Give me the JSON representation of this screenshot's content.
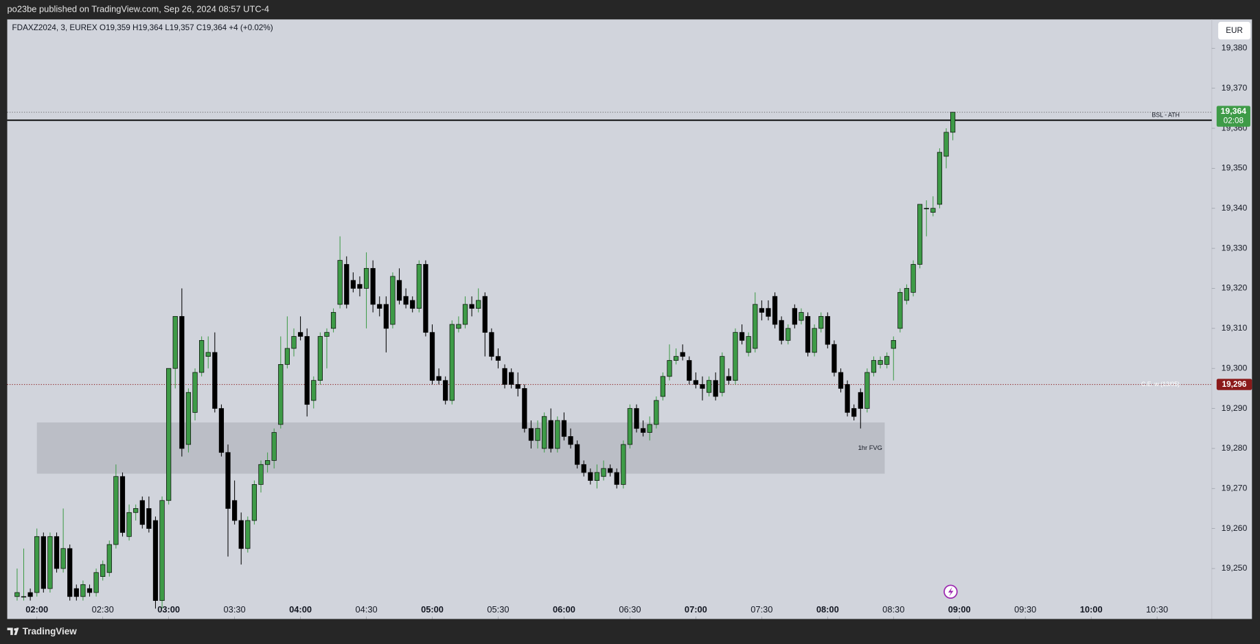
{
  "header": "po23be published on TradingView.com, Sep 26, 2024 08:57 UTC-4",
  "footer": "TradingView",
  "chart_data": {
    "type": "candlestick",
    "legend": {
      "symbol": "FDAXZ2024, 3, EUREX",
      "ohlc": "O19,359 H19,364 L19,357 C19,364",
      "change": "+4 (+0.02%)"
    },
    "currency": "EUR",
    "up_color": "#3e9b47",
    "down_color": "#000000",
    "xlim": [
      106.5,
      654.9
    ],
    "ylim": [
      19237.4,
      19387.2
    ],
    "xticks": [
      {
        "value": 120,
        "label": "02:00"
      },
      {
        "value": 150,
        "label": "02:30"
      },
      {
        "value": 180,
        "label": "03:00"
      },
      {
        "value": 210,
        "label": "03:30"
      },
      {
        "value": 240,
        "label": "04:00"
      },
      {
        "value": 270,
        "label": "04:30"
      },
      {
        "value": 300,
        "label": "05:00"
      },
      {
        "value": 330,
        "label": "05:30"
      },
      {
        "value": 360,
        "label": "06:00"
      },
      {
        "value": 390,
        "label": "06:30"
      },
      {
        "value": 420,
        "label": "07:00"
      },
      {
        "value": 450,
        "label": "07:30"
      },
      {
        "value": 480,
        "label": "08:00"
      },
      {
        "value": 510,
        "label": "08:30"
      },
      {
        "value": 540,
        "label": "09:00"
      },
      {
        "value": 570,
        "label": "09:30"
      },
      {
        "value": 600,
        "label": "10:00"
      },
      {
        "value": 630,
        "label": "10:30"
      }
    ],
    "yticks": [
      {
        "value": 19250,
        "label": "19,250"
      },
      {
        "value": 19260,
        "label": "19,260"
      },
      {
        "value": 19270,
        "label": "19,270"
      },
      {
        "value": 19280,
        "label": "19,280"
      },
      {
        "value": 19290,
        "label": "19,290"
      },
      {
        "value": 19300,
        "label": "19,300"
      },
      {
        "value": 19310,
        "label": "19,310"
      },
      {
        "value": 19320,
        "label": "19,320"
      },
      {
        "value": 19330,
        "label": "19,330"
      },
      {
        "value": 19340,
        "label": "19,340"
      },
      {
        "value": 19350,
        "label": "19,350"
      },
      {
        "value": 19360,
        "label": "19,360"
      },
      {
        "value": 19370,
        "label": "19,370"
      },
      {
        "value": 19380,
        "label": "19,380"
      }
    ],
    "grid": false,
    "zones": [
      {
        "label": "1hr FVG",
        "x": [
          120,
          506
        ],
        "y": [
          19273.7,
          19286.5
        ],
        "color": "#bbbec6"
      }
    ],
    "lines": [
      {
        "label": "BSL - ATH",
        "value": 19362,
        "color": "#000000",
        "style": "solid"
      },
      {
        "label": "C.E. w (13/05)",
        "value": 19296,
        "value_label": "19,296",
        "color": "#8b1a1a",
        "style": "dotted"
      }
    ],
    "last_price": {
      "value": 19364,
      "label": "19,364",
      "countdown": "02:08",
      "color": "#3e9b47"
    },
    "x": [
      111,
      114,
      117,
      120,
      123,
      126,
      129,
      132,
      135,
      138,
      141,
      144,
      147,
      150,
      153,
      156,
      159,
      162,
      165,
      168,
      171,
      174,
      177,
      180,
      183,
      186,
      189,
      192,
      195,
      198,
      201,
      204,
      207,
      210,
      213,
      216,
      219,
      222,
      225,
      228,
      231,
      234,
      237,
      240,
      243,
      246,
      249,
      252,
      255,
      258,
      261,
      264,
      267,
      270,
      273,
      276,
      279,
      282,
      285,
      288,
      291,
      294,
      297,
      300,
      303,
      306,
      309,
      312,
      315,
      318,
      321,
      324,
      327,
      330,
      333,
      336,
      339,
      342,
      345,
      348,
      351,
      354,
      357,
      360,
      363,
      366,
      369,
      372,
      375,
      378,
      381,
      384,
      387,
      390,
      393,
      396,
      399,
      402,
      405,
      408,
      411,
      414,
      417,
      420,
      423,
      426,
      429,
      432,
      435,
      438,
      441,
      444,
      447,
      450,
      453,
      456,
      459,
      462,
      465,
      468,
      471,
      474,
      477,
      480,
      483,
      486,
      489,
      492,
      495,
      498,
      501,
      504,
      507,
      510,
      513,
      516,
      519,
      522,
      525,
      528,
      531,
      534,
      537
    ],
    "ohlc": [
      [
        19243,
        19250,
        19242,
        19244
      ],
      [
        19243,
        19255,
        19242,
        19243
      ],
      [
        19244,
        19245,
        19242,
        19243
      ],
      [
        19244,
        19260,
        19243,
        19258
      ],
      [
        19258,
        19259,
        19244,
        19245
      ],
      [
        19245,
        19259,
        19244,
        19258
      ],
      [
        19258,
        19259,
        19249,
        19250
      ],
      [
        19250,
        19265,
        19249,
        19255
      ],
      [
        19255,
        19256,
        19242,
        19243
      ],
      [
        19245,
        19246,
        19242,
        19243
      ],
      [
        19243,
        19247,
        19242,
        19246
      ],
      [
        19245,
        19246,
        19243,
        19244
      ],
      [
        19244,
        19250,
        19243,
        19249
      ],
      [
        19248,
        19252,
        19247,
        19251
      ],
      [
        19249,
        19257,
        19248,
        19256
      ],
      [
        19256,
        19276,
        19255,
        19273
      ],
      [
        19273,
        19274,
        19258,
        19259
      ],
      [
        19258,
        19266,
        19257,
        19264
      ],
      [
        19264,
        19266,
        19262,
        19265
      ],
      [
        19267,
        19268,
        19260,
        19261
      ],
      [
        19265,
        19268,
        19259,
        19260
      ],
      [
        19262,
        19263,
        19240,
        19242
      ],
      [
        19242,
        19268,
        19240,
        19267
      ],
      [
        19267,
        19300,
        19266,
        19300
      ],
      [
        19300,
        19313,
        19295,
        19313
      ],
      [
        19313,
        19320,
        19278,
        19280
      ],
      [
        19281,
        19295,
        19279,
        19294
      ],
      [
        19289,
        19300,
        19287,
        19299
      ],
      [
        19299,
        19308,
        19298,
        19307
      ],
      [
        19303,
        19308,
        19300,
        19304
      ],
      [
        19304,
        19309,
        19289,
        19290
      ],
      [
        19290,
        19291,
        19278,
        19279
      ],
      [
        19279,
        19281,
        19253,
        19265
      ],
      [
        19267,
        19272,
        19261,
        19262
      ],
      [
        19262,
        19264,
        19251,
        19255
      ],
      [
        19255,
        19263,
        19254,
        19262
      ],
      [
        19262,
        19272,
        19261,
        19271
      ],
      [
        19271,
        19277,
        19269,
        19276
      ],
      [
        19276,
        19279,
        19274,
        19277
      ],
      [
        19277,
        19285,
        19275,
        19284
      ],
      [
        19286,
        19308,
        19285,
        19301
      ],
      [
        19301,
        19313,
        19300,
        19305
      ],
      [
        19305,
        19310,
        19303,
        19308
      ],
      [
        19309,
        19313,
        19307,
        19308
      ],
      [
        19308,
        19310,
        19288,
        19291
      ],
      [
        19292,
        19298,
        19290,
        19297
      ],
      [
        19297,
        19309,
        19296,
        19308
      ],
      [
        19308,
        19310,
        19300,
        19309
      ],
      [
        19310,
        19315,
        19309,
        19314
      ],
      [
        19316,
        19333,
        19315,
        19327
      ],
      [
        19326,
        19328,
        19315,
        19316
      ],
      [
        19322,
        19324,
        19319,
        19320
      ],
      [
        19321,
        19323,
        19318,
        19320
      ],
      [
        19320,
        19329,
        19310,
        19325
      ],
      [
        19325,
        19327,
        19314,
        19316
      ],
      [
        19316,
        19318,
        19313,
        19315
      ],
      [
        19316,
        19318,
        19304,
        19310
      ],
      [
        19311,
        19324,
        19310,
        19323
      ],
      [
        19322,
        19325,
        19316,
        19317
      ],
      [
        19318,
        19320,
        19315,
        19316
      ],
      [
        19317,
        19318,
        19314,
        19315
      ],
      [
        19315,
        19327,
        19314,
        19326
      ],
      [
        19326,
        19327,
        19308,
        19309
      ],
      [
        19309,
        19311,
        19296,
        19297
      ],
      [
        19298,
        19300,
        19296,
        19297
      ],
      [
        19297,
        19298,
        19291,
        19292
      ],
      [
        19292,
        19312,
        19291,
        19311
      ],
      [
        19310,
        19313,
        19309,
        19311
      ],
      [
        19311,
        19318,
        19310,
        19316
      ],
      [
        19316,
        19318,
        19313,
        19315
      ],
      [
        19315,
        19320,
        19314,
        19317
      ],
      [
        19318,
        19319,
        19303,
        19309
      ],
      [
        19309,
        19310,
        19302,
        19303
      ],
      [
        19303,
        19305,
        19300,
        19302
      ],
      [
        19300,
        19301,
        19295,
        19296
      ],
      [
        19299,
        19300,
        19295,
        19296
      ],
      [
        19296,
        19299,
        19293,
        19295
      ],
      [
        19295,
        19296,
        19284,
        19285
      ],
      [
        19285,
        19287,
        19280,
        19282
      ],
      [
        19282,
        19287,
        19280,
        19285
      ],
      [
        19280,
        19289,
        19279,
        19288
      ],
      [
        19287,
        19290,
        19279,
        19280
      ],
      [
        19280,
        19288,
        19279,
        19287
      ],
      [
        19287,
        19289,
        19282,
        19283
      ],
      [
        19283,
        19285,
        19280,
        19281
      ],
      [
        19281,
        19282,
        19275,
        19276
      ],
      [
        19276,
        19277,
        19273,
        19274
      ],
      [
        19274,
        19275,
        19271,
        19272
      ],
      [
        19272,
        19276,
        19270,
        19274
      ],
      [
        19273,
        19277,
        19272,
        19275
      ],
      [
        19275,
        19276,
        19273,
        19274
      ],
      [
        19274,
        19275,
        19270,
        19271
      ],
      [
        19271,
        19282,
        19270,
        19281
      ],
      [
        19281,
        19291,
        19280,
        19290
      ],
      [
        19290,
        19291,
        19284,
        19285
      ],
      [
        19285,
        19287,
        19283,
        19284
      ],
      [
        19284,
        19288,
        19282,
        19286
      ],
      [
        19286,
        19293,
        19285,
        19292
      ],
      [
        19293,
        19299,
        19292,
        19298
      ],
      [
        19298,
        19306,
        19297,
        19302
      ],
      [
        19302,
        19305,
        19301,
        19303
      ],
      [
        19304,
        19306,
        19302,
        19303
      ],
      [
        19302,
        19303,
        19296,
        19297
      ],
      [
        19297,
        19299,
        19295,
        19296
      ],
      [
        19296,
        19298,
        19292,
        19295
      ],
      [
        19294,
        19298,
        19293,
        19297
      ],
      [
        19297,
        19299,
        19292,
        19293
      ],
      [
        19294,
        19304,
        19293,
        19303
      ],
      [
        19298,
        19300,
        19296,
        19297
      ],
      [
        19297,
        19310,
        19296,
        19309
      ],
      [
        19309,
        19311,
        19306,
        19307
      ],
      [
        19304,
        19309,
        19303,
        19308
      ],
      [
        19305,
        19319,
        19304,
        19316
      ],
      [
        19315,
        19317,
        19312,
        19314
      ],
      [
        19315,
        19317,
        19312,
        19313
      ],
      [
        19318,
        19319,
        19310,
        19311
      ],
      [
        19312,
        19313,
        19306,
        19307
      ],
      [
        19307,
        19311,
        19306,
        19310
      ],
      [
        19315,
        19316,
        19310,
        19311
      ],
      [
        19312,
        19315,
        19311,
        19314
      ],
      [
        19313,
        19314,
        19303,
        19304
      ],
      [
        19304,
        19311,
        19303,
        19310
      ],
      [
        19310,
        19314,
        19309,
        19313
      ],
      [
        19313,
        19314,
        19305,
        19306
      ],
      [
        19306,
        19307,
        19298,
        19299
      ],
      [
        19299,
        19300,
        19294,
        19295
      ],
      [
        19296,
        19297,
        19288,
        19289
      ],
      [
        19290,
        19291,
        19287,
        19288
      ],
      [
        19294,
        19295,
        19285,
        19290
      ],
      [
        19290,
        19300,
        19289,
        19299
      ],
      [
        19299,
        19303,
        19298,
        19302
      ],
      [
        19301,
        19303,
        19300,
        19302
      ],
      [
        19301,
        19304,
        19300,
        19303
      ],
      [
        19305,
        19308,
        19297,
        19307
      ],
      [
        19310,
        19320,
        19309,
        19319
      ],
      [
        19317,
        19321,
        19316,
        19320
      ],
      [
        19319,
        19327,
        19318,
        19326
      ],
      [
        19326,
        19341,
        19325,
        19341
      ],
      [
        19340,
        19342,
        19333,
        19340
      ],
      [
        19339,
        19343,
        19338,
        19340
      ],
      [
        19341,
        19355,
        19340,
        19354
      ],
      [
        19353,
        19360,
        19350,
        19359
      ],
      [
        19359,
        19364,
        19357,
        19364
      ]
    ]
  }
}
